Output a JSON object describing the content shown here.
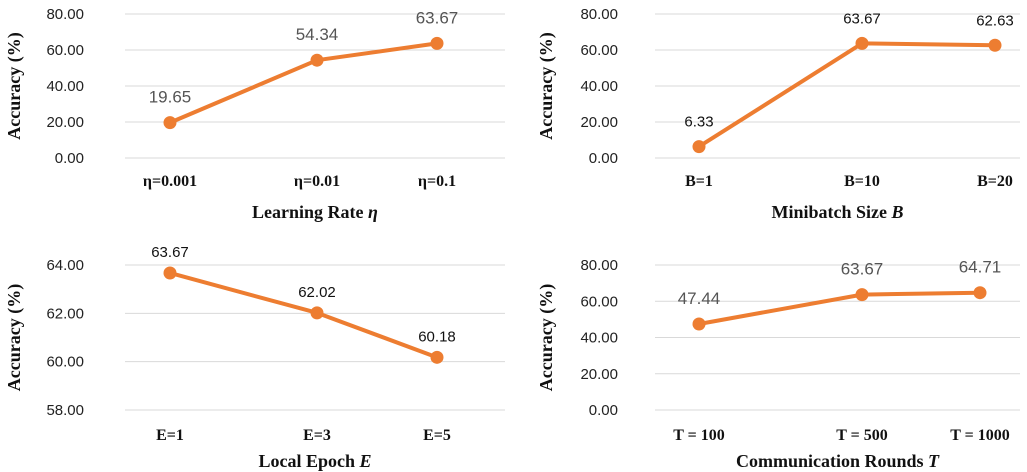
{
  "colors": {
    "series": "#ED7D31",
    "grid": "#D9D9D9"
  },
  "chart_data": [
    {
      "type": "line",
      "xlabel": "Learning Rate η",
      "xlabel_main": "Learning Rate ",
      "xlabel_var": "η",
      "ylabel": "Accuracy (%)",
      "categories": [
        "η=0.001",
        "η=0.01",
        "η=0.1"
      ],
      "values": [
        19.65,
        54.34,
        63.67
      ],
      "value_labels": [
        "19.65",
        "54.34",
        "63.67"
      ],
      "y_ticks": [
        "0.00",
        "20.00",
        "40.00",
        "60.00",
        "80.00"
      ],
      "ylim": [
        0,
        80
      ],
      "grid": true
    },
    {
      "type": "line",
      "xlabel": "Minibatch Size B",
      "xlabel_main": "Minibatch Size ",
      "xlabel_var": "B",
      "ylabel": "Accuracy (%)",
      "categories": [
        "B=1",
        "B=10",
        "B=20"
      ],
      "values": [
        6.33,
        63.67,
        62.63
      ],
      "value_labels": [
        "6.33",
        "63.67",
        "62.63"
      ],
      "y_ticks": [
        "0.00",
        "20.00",
        "40.00",
        "60.00",
        "80.00"
      ],
      "ylim": [
        0,
        80
      ],
      "grid": true
    },
    {
      "type": "line",
      "xlabel": "Local Epoch E",
      "xlabel_main": "Local Epoch ",
      "xlabel_var": "E",
      "ylabel": "Accuracy (%)",
      "categories": [
        "E=1",
        "E=3",
        "E=5"
      ],
      "values": [
        63.67,
        62.02,
        60.18
      ],
      "value_labels": [
        "63.67",
        "62.02",
        "60.18"
      ],
      "y_ticks": [
        "58.00",
        "60.00",
        "62.00",
        "64.00"
      ],
      "ylim": [
        58,
        64
      ],
      "grid": true
    },
    {
      "type": "line",
      "xlabel": "Communication Rounds T",
      "xlabel_main": "Communication Rounds ",
      "xlabel_var": "T",
      "ylabel": "Accuracy (%)",
      "categories": [
        "T = 100",
        "T = 500",
        "T = 1000"
      ],
      "values": [
        47.44,
        63.67,
        64.71
      ],
      "value_labels": [
        "47.44",
        "63.67",
        "64.71"
      ],
      "y_ticks": [
        "0.00",
        "20.00",
        "40.00",
        "60.00",
        "80.00"
      ],
      "ylim": [
        0,
        80
      ],
      "grid": true
    }
  ]
}
